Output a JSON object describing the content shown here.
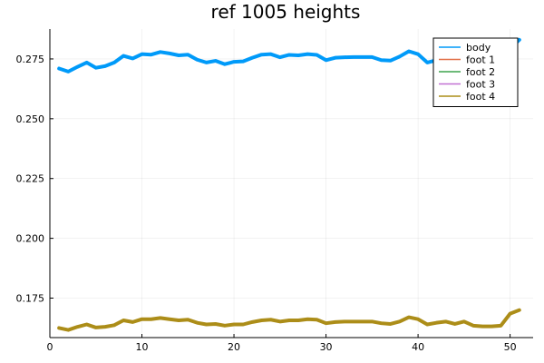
{
  "chart_data": {
    "type": "line",
    "title": "ref 1005 heights",
    "xlabel": "",
    "ylabel": "",
    "xlim": [
      0,
      52.5
    ],
    "ylim": [
      0.1585,
      0.2875
    ],
    "xticks": [
      0,
      10,
      20,
      30,
      40,
      50
    ],
    "xtick_labels": [
      "0",
      "10",
      "20",
      "30",
      "40",
      "50"
    ],
    "yticks": [
      0.175,
      0.2,
      0.225,
      0.25,
      0.275
    ],
    "ytick_labels": [
      "0.175",
      "0.200",
      "0.225",
      "0.250",
      "0.275"
    ],
    "grid": true,
    "legend_position": "top-right",
    "x": [
      1,
      2,
      3,
      4,
      5,
      6,
      7,
      8,
      9,
      10,
      11,
      12,
      13,
      14,
      15,
      16,
      17,
      18,
      19,
      20,
      21,
      22,
      23,
      24,
      25,
      26,
      27,
      28,
      29,
      30,
      31,
      32,
      33,
      34,
      35,
      36,
      37,
      38,
      39,
      40,
      41,
      42,
      43,
      44,
      45,
      46,
      47,
      48,
      49,
      50,
      51
    ],
    "series": [
      {
        "name": "body",
        "color": "#009af9",
        "width": 4,
        "values": [
          0.271,
          0.2697,
          0.2717,
          0.2735,
          0.2713,
          0.272,
          0.2735,
          0.2763,
          0.2752,
          0.277,
          0.2768,
          0.2779,
          0.2773,
          0.2765,
          0.2768,
          0.2747,
          0.2735,
          0.2742,
          0.2728,
          0.2738,
          0.274,
          0.2755,
          0.2768,
          0.277,
          0.2757,
          0.2767,
          0.2765,
          0.277,
          0.2767,
          0.2745,
          0.2755,
          0.2757,
          0.2758,
          0.2758,
          0.2758,
          0.2745,
          0.2743,
          0.276,
          0.2782,
          0.277,
          0.2735,
          0.2745,
          0.276,
          0.2765,
          0.276,
          0.2765,
          0.2765,
          0.277,
          0.2775,
          0.2795,
          0.283
        ]
      },
      {
        "name": "foot 1",
        "color": "#e26f46",
        "width": 1,
        "values": [
          0.1625,
          0.1617,
          0.163,
          0.164,
          0.1627,
          0.163,
          0.1637,
          0.1657,
          0.165,
          0.1662,
          0.1662,
          0.1667,
          0.1662,
          0.1657,
          0.166,
          0.1647,
          0.164,
          0.1642,
          0.1635,
          0.164,
          0.164,
          0.165,
          0.1657,
          0.166,
          0.1652,
          0.1657,
          0.1657,
          0.1662,
          0.166,
          0.1645,
          0.165,
          0.1652,
          0.1652,
          0.1652,
          0.1652,
          0.1645,
          0.1642,
          0.1652,
          0.167,
          0.1662,
          0.164,
          0.1647,
          0.1652,
          0.1642,
          0.1652,
          0.1635,
          0.1632,
          0.1632,
          0.1635,
          0.1685,
          0.17
        ]
      },
      {
        "name": "foot 2",
        "color": "#3da44d",
        "width": 1,
        "values": [
          0.1625,
          0.1617,
          0.163,
          0.164,
          0.1627,
          0.163,
          0.1637,
          0.1657,
          0.165,
          0.1662,
          0.1662,
          0.1667,
          0.1662,
          0.1657,
          0.166,
          0.1647,
          0.164,
          0.1642,
          0.1635,
          0.164,
          0.164,
          0.165,
          0.1657,
          0.166,
          0.1652,
          0.1657,
          0.1657,
          0.1662,
          0.166,
          0.1645,
          0.165,
          0.1652,
          0.1652,
          0.1652,
          0.1652,
          0.1645,
          0.1642,
          0.1652,
          0.167,
          0.1662,
          0.164,
          0.1647,
          0.1652,
          0.1642,
          0.1652,
          0.1635,
          0.1632,
          0.1632,
          0.1635,
          0.1685,
          0.17
        ]
      },
      {
        "name": "foot 3",
        "color": "#c271d2",
        "width": 1,
        "values": [
          0.1625,
          0.1617,
          0.163,
          0.164,
          0.1627,
          0.163,
          0.1637,
          0.1657,
          0.165,
          0.1662,
          0.1662,
          0.1667,
          0.1662,
          0.1657,
          0.166,
          0.1647,
          0.164,
          0.1642,
          0.1635,
          0.164,
          0.164,
          0.165,
          0.1657,
          0.166,
          0.1652,
          0.1657,
          0.1657,
          0.1662,
          0.166,
          0.1645,
          0.165,
          0.1652,
          0.1652,
          0.1652,
          0.1652,
          0.1645,
          0.1642,
          0.1652,
          0.167,
          0.1662,
          0.164,
          0.1647,
          0.1652,
          0.1642,
          0.1652,
          0.1635,
          0.1632,
          0.1632,
          0.1635,
          0.1685,
          0.17
        ]
      },
      {
        "name": "foot 4",
        "color": "#ac8d18",
        "width": 4,
        "values": [
          0.1625,
          0.1617,
          0.163,
          0.164,
          0.1627,
          0.163,
          0.1637,
          0.1657,
          0.165,
          0.1662,
          0.1662,
          0.1667,
          0.1662,
          0.1657,
          0.166,
          0.1647,
          0.164,
          0.1642,
          0.1635,
          0.164,
          0.164,
          0.165,
          0.1657,
          0.166,
          0.1652,
          0.1657,
          0.1657,
          0.1662,
          0.166,
          0.1645,
          0.165,
          0.1652,
          0.1652,
          0.1652,
          0.1652,
          0.1645,
          0.1642,
          0.1652,
          0.167,
          0.1662,
          0.164,
          0.1647,
          0.1652,
          0.1642,
          0.1652,
          0.1635,
          0.1632,
          0.1632,
          0.1635,
          0.1685,
          0.17
        ]
      }
    ]
  }
}
